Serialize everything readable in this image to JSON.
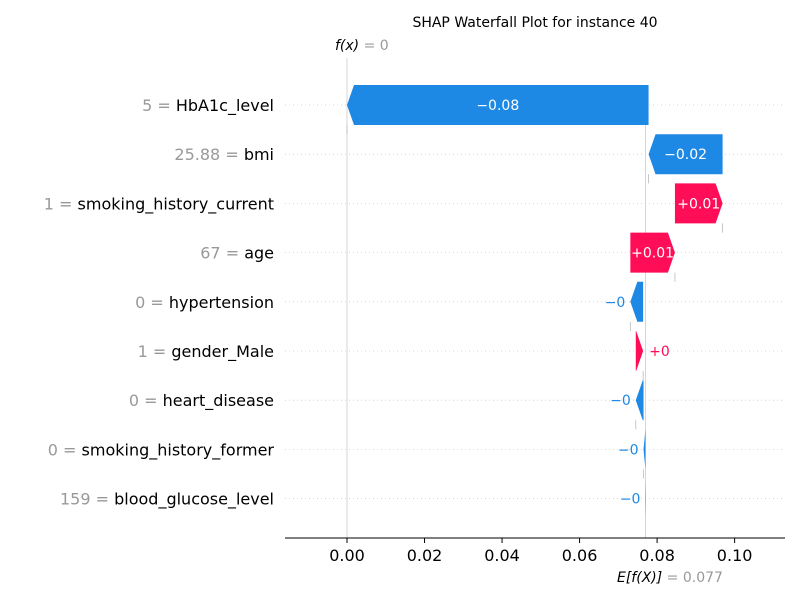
{
  "chart_data": {
    "type": "waterfall",
    "title": "SHAP Waterfall Plot for instance 40",
    "fx_label": "f(x)",
    "fx_value": "0",
    "fx_numeric": 0.0,
    "efx_label": "E[f(X)]",
    "efx_value": "0.077",
    "efx_numeric": 0.077,
    "xlim": [
      -0.016,
      0.113
    ],
    "x_ticks": [
      0.0,
      0.02,
      0.04,
      0.06,
      0.08,
      0.1
    ],
    "x_tick_labels": [
      "0.00",
      "0.02",
      "0.04",
      "0.06",
      "0.08",
      "0.10"
    ],
    "colors": {
      "positive": "#ff0d57",
      "negative": "#1e88e5",
      "muted": "#999999",
      "grid": "#cccccc"
    },
    "features": [
      {
        "value": "5",
        "name": "HbA1c_level",
        "start": 0.0778,
        "end": 0.0,
        "label": "−0.08"
      },
      {
        "value": "25.88",
        "name": "bmi",
        "start": 0.0969,
        "end": 0.0778,
        "label": "−0.02"
      },
      {
        "value": "1",
        "name": "smoking_history_current",
        "start": 0.0846,
        "end": 0.0969,
        "label": "+0.01"
      },
      {
        "value": "67",
        "name": "age",
        "start": 0.0731,
        "end": 0.0846,
        "label": "+0.01"
      },
      {
        "value": "0",
        "name": "hypertension",
        "start": 0.0764,
        "end": 0.0731,
        "label": "−0"
      },
      {
        "value": "1",
        "name": "gender_Male",
        "start": 0.0745,
        "end": 0.0764,
        "label": "+0"
      },
      {
        "value": "0",
        "name": "heart_disease",
        "start": 0.0765,
        "end": 0.0745,
        "label": "−0"
      },
      {
        "value": "0",
        "name": "smoking_history_former",
        "start": 0.077,
        "end": 0.0765,
        "label": "−0"
      },
      {
        "value": "159",
        "name": "blood_glucose_level",
        "start": 0.0771,
        "end": 0.077,
        "label": "−0"
      }
    ]
  }
}
